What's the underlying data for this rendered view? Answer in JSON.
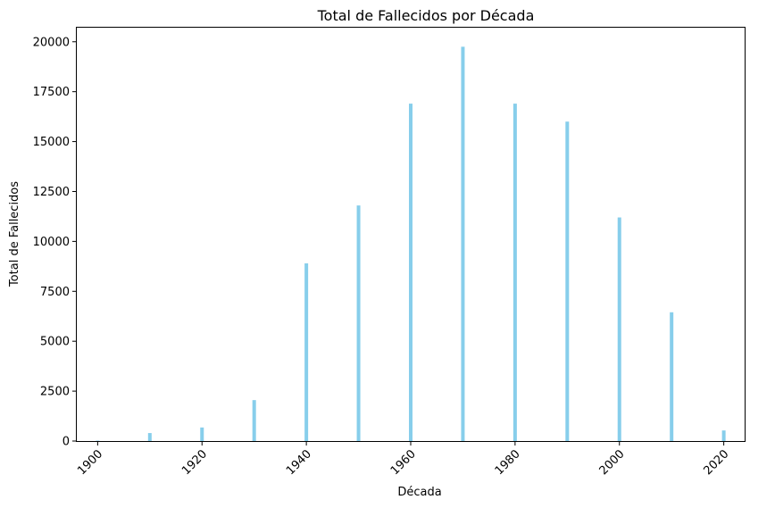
{
  "chart_data": {
    "type": "bar",
    "title": "Total de Fallecidos por Década",
    "xlabel": "Década",
    "ylabel": "Total de Fallecidos",
    "x": [
      1900,
      1910,
      1920,
      1930,
      1940,
      1950,
      1960,
      1970,
      1980,
      1990,
      2000,
      2010,
      2020
    ],
    "values": [
      20,
      400,
      680,
      2050,
      8900,
      11800,
      16900,
      19750,
      16900,
      16000,
      11200,
      6450,
      530
    ],
    "xticks": [
      "1900",
      "1920",
      "1940",
      "1960",
      "1980",
      "2000",
      "2020"
    ],
    "yticks": [
      "0",
      "2500",
      "5000",
      "7500",
      "10000",
      "12500",
      "15000",
      "17500",
      "20000"
    ],
    "xlim": [
      1896,
      2024
    ],
    "ylim": [
      0,
      20750
    ],
    "bar_color": "#87CEEB",
    "grid": false,
    "legend": false,
    "xtick_rotation": 45
  }
}
